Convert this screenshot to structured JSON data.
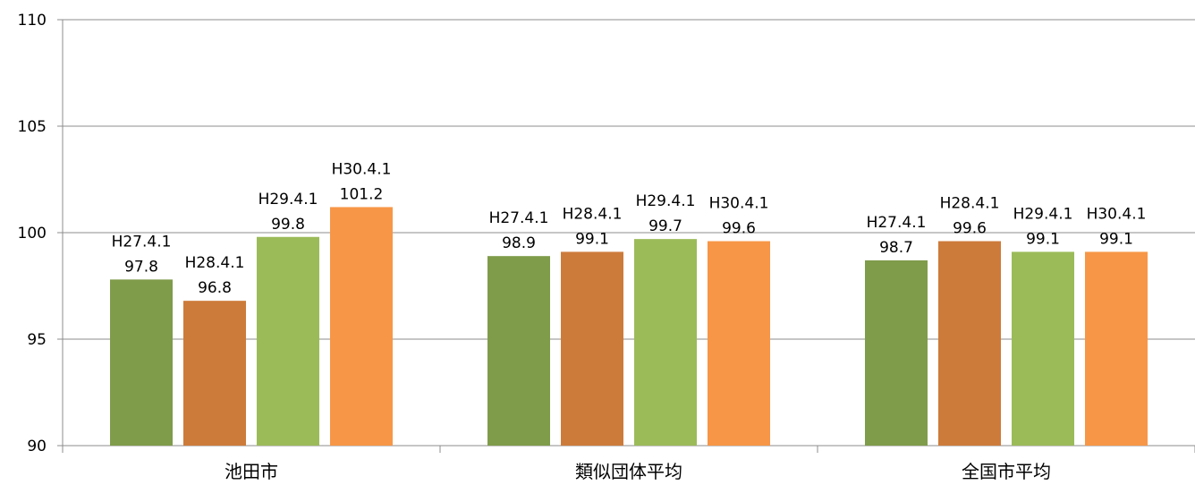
{
  "chart_data": {
    "type": "bar",
    "title": "",
    "xlabel": "",
    "ylabel": "",
    "categories": [
      "池田市",
      "類似団体平均",
      "全国市平均"
    ],
    "series": [
      {
        "name": "H27.4.1",
        "values": [
          97.8,
          98.9,
          98.7
        ],
        "color": "#7f9c4a"
      },
      {
        "name": "H28.4.1",
        "values": [
          96.8,
          99.1,
          99.6
        ],
        "color": "#cd7b3a"
      },
      {
        "name": "H29.4.1",
        "values": [
          99.8,
          99.7,
          99.1
        ],
        "color": "#9bbb59"
      },
      {
        "name": "H30.4.1",
        "values": [
          101.2,
          99.6,
          99.1
        ],
        "color": "#f79646"
      }
    ],
    "data_labels": [
      [
        "97.8",
        "98.9",
        "98.7"
      ],
      [
        "96.8",
        "99.1",
        "99.6"
      ],
      [
        "99.8",
        "99.7",
        "99.1"
      ],
      [
        "101.2",
        "99.6",
        "99.1"
      ]
    ],
    "ylim": [
      90,
      110
    ],
    "yticks": [
      90,
      95,
      100,
      105,
      110
    ],
    "ytick_labels": [
      "90",
      "95",
      "100",
      "105",
      "110"
    ],
    "grid": true,
    "legend": "none",
    "gridline_color": "#8c8c8c",
    "axis_color": "#8c8c8c"
  }
}
